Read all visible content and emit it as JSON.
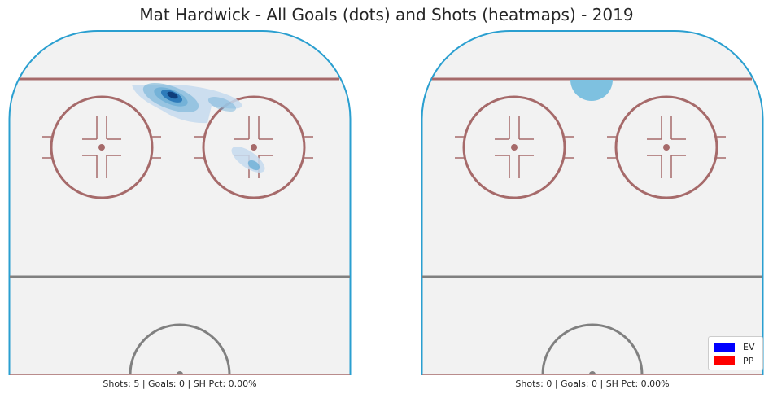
{
  "title": "Mat Hardwick - All Goals (dots) and Shots (heatmaps) - 2019",
  "colors": {
    "rink_outline": "#2a9fd0",
    "ice": "#f2f2f2",
    "red_line": "#a66a6a",
    "center_line": "#808080",
    "heat_light": "#c6dbef",
    "heat_mid": "#6baed6",
    "heat_dark": "#2171b5",
    "heat_darkest": "#08306b",
    "goal_fill": "#7ec1e0",
    "legend_ev": "#0000ff",
    "legend_pp": "#ff0000"
  },
  "panels": [
    {
      "caption": "Shots: 5 | Goals: 0 | SH Pct: 0.00%",
      "heatmap": "ev",
      "heat_level_count": 5
    },
    {
      "caption": "Shots: 0 | Goals: 0 | SH Pct: 0.00%",
      "heatmap": "goal-area"
    }
  ],
  "legend": {
    "placement": "bottom-right",
    "items": [
      {
        "label": "EV",
        "color": "#0000ff"
      },
      {
        "label": "PP",
        "color": "#ff0000"
      }
    ]
  },
  "chart_data": [
    {
      "type": "heatmap",
      "title": "Mat Hardwick - All Goals (dots) and Shots (heatmaps) - 2019",
      "panel": "left",
      "shots": 5,
      "goals": 0,
      "sh_pct": "0.00%",
      "xlabel": "",
      "ylabel": "",
      "grid": false
    },
    {
      "type": "heatmap",
      "panel": "right",
      "shots": 0,
      "goals": 0,
      "sh_pct": "0.00%",
      "xlabel": "",
      "ylabel": "",
      "grid": false
    }
  ]
}
